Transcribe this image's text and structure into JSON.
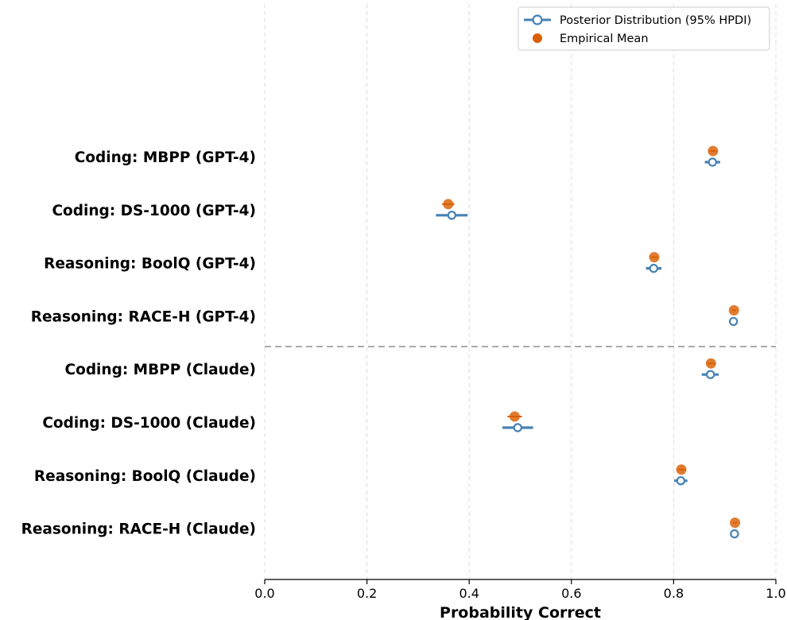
{
  "chart_data": {
    "type": "scatter",
    "title": "",
    "xlabel": "Probability Correct",
    "ylabel": "",
    "xlim": [
      0.0,
      1.0
    ],
    "xticks": [
      "0.0",
      "0.2",
      "0.4",
      "0.6",
      "0.8",
      "1.0"
    ],
    "grid": "vertical dashed",
    "legend_position": "top-right",
    "colors": {
      "posterior": "#4682b4",
      "empirical": "#d95f02"
    },
    "categories": [
      "Coding: MBPP (GPT-4)",
      "Coding: DS-1000 (GPT-4)",
      "Reasoning: BoolQ (GPT-4)",
      "Reasoning: RACE-H (GPT-4)",
      "Coding: MBPP (Claude)",
      "Coding: DS-1000 (Claude)",
      "Reasoning: BoolQ (Claude)",
      "Reasoning: RACE-H (Claude)"
    ],
    "separator_after_index": 3,
    "series": [
      {
        "name": "Posterior Distribution (95% HPDI)",
        "mean": [
          0.876,
          0.366,
          0.761,
          0.917,
          0.872,
          0.495,
          0.814,
          0.919
        ],
        "hpdi_low": [
          0.861,
          0.335,
          0.746,
          0.911,
          0.855,
          0.465,
          0.801,
          0.913
        ],
        "hpdi_high": [
          0.891,
          0.397,
          0.776,
          0.923,
          0.888,
          0.525,
          0.827,
          0.925
        ]
      },
      {
        "name": "Empirical Mean",
        "values": [
          0.877,
          0.359,
          0.762,
          0.918,
          0.873,
          0.489,
          0.815,
          0.92
        ],
        "err_low": [
          0.87,
          0.347,
          0.756,
          0.914,
          0.866,
          0.475,
          0.808,
          0.916
        ],
        "err_high": [
          0.884,
          0.371,
          0.768,
          0.922,
          0.88,
          0.503,
          0.822,
          0.924
        ]
      }
    ]
  }
}
